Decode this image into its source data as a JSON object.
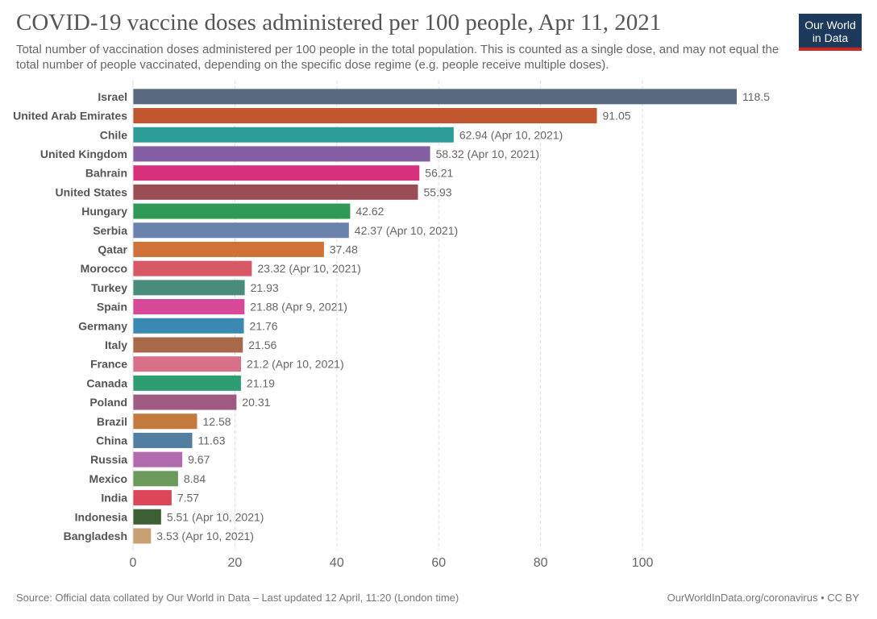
{
  "header": {
    "title": "COVID-19 vaccine doses administered per 100 people, Apr 11, 2021",
    "subtitle": "Total number of vaccination doses administered per 100 people in the total population. This is counted as a single dose, and may not equal the total number of people vaccinated, depending on the specific dose regime (e.g. people receive multiple doses).",
    "logo_line1": "Our World",
    "logo_line2": "in Data"
  },
  "footer": {
    "source": "Source: Official data collated by Our World in Data – Last updated 12 April, 11:20 (London time)",
    "credit": "OurWorldInData.org/coronavirus • CC BY"
  },
  "colors": {
    "logo_background": "#1d3a5c",
    "logo_underline": "#ce261e"
  },
  "chart_data": {
    "type": "bar",
    "orientation": "horizontal",
    "title": "COVID-19 vaccine doses administered per 100 people, Apr 11, 2021",
    "xlim": [
      0,
      118.5
    ],
    "xticks": [
      0,
      20,
      40,
      60,
      80,
      100
    ],
    "grid": "vertical dashed",
    "categories": [
      "Israel",
      "United Arab Emirates",
      "Chile",
      "United Kingdom",
      "Bahrain",
      "United States",
      "Hungary",
      "Serbia",
      "Qatar",
      "Morocco",
      "Turkey",
      "Spain",
      "Germany",
      "Italy",
      "France",
      "Canada",
      "Poland",
      "Brazil",
      "China",
      "Russia",
      "Mexico",
      "India",
      "Indonesia",
      "Bangladesh"
    ],
    "values": [
      118.5,
      91.05,
      62.94,
      58.32,
      56.21,
      55.93,
      42.62,
      42.37,
      37.48,
      23.32,
      21.93,
      21.88,
      21.76,
      21.56,
      21.2,
      21.19,
      20.31,
      12.58,
      11.63,
      9.67,
      8.84,
      7.57,
      5.51,
      3.53
    ],
    "labels": [
      "118.5",
      "91.05",
      "62.94 (Apr 10, 2021)",
      "58.32 (Apr 10, 2021)",
      "56.21",
      "55.93",
      "42.62",
      "42.37 (Apr 10, 2021)",
      "37.48",
      "23.32 (Apr 10, 2021)",
      "21.93",
      "21.88 (Apr 9, 2021)",
      "21.76",
      "21.56",
      "21.2 (Apr 10, 2021)",
      "21.19",
      "20.31",
      "12.58",
      "11.63",
      "9.67",
      "8.84",
      "7.57",
      "5.51 (Apr 10, 2021)",
      "3.53 (Apr 10, 2021)"
    ],
    "colors": [
      "#5a6880",
      "#c2562e",
      "#2a9d97",
      "#835ea3",
      "#d7317c",
      "#9b4d55",
      "#2f9a57",
      "#6a83ad",
      "#d07138",
      "#d85866",
      "#4a8c7c",
      "#d74898",
      "#3a89b0",
      "#a8684a",
      "#d77088",
      "#2c9e72",
      "#9e5a80",
      "#c47a3c",
      "#527ea2",
      "#b16aab",
      "#6c9a5a",
      "#dd4658",
      "#3d5f34",
      "#c9a072"
    ]
  }
}
